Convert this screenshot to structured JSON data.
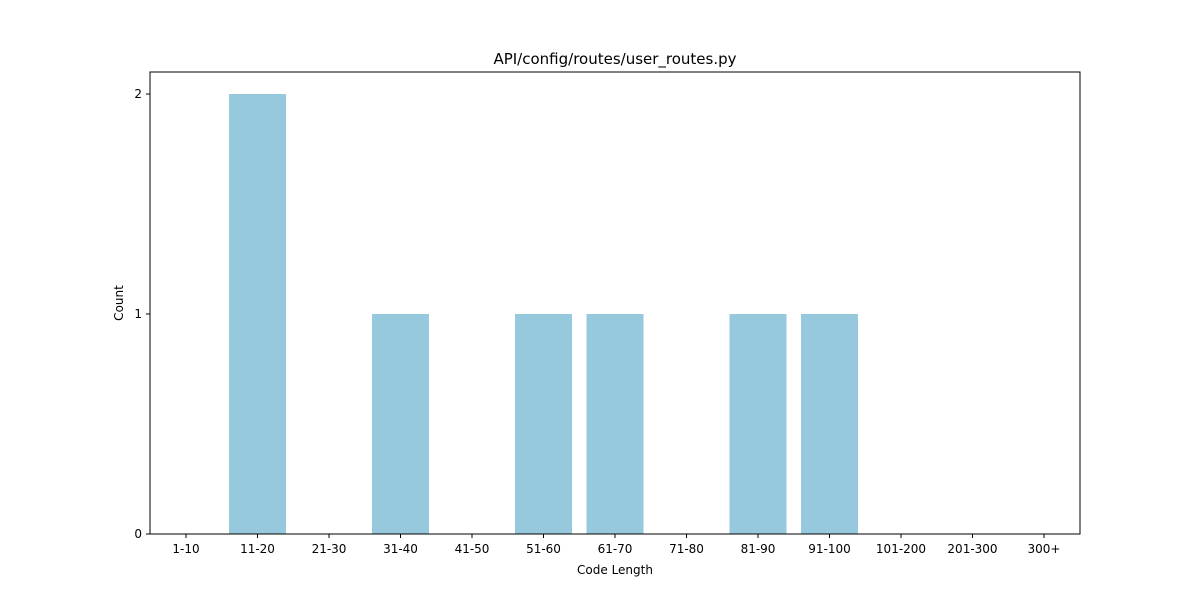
{
  "chart_data": {
    "type": "bar",
    "title": "API/config/routes/user_routes.py",
    "xlabel": "Code Length",
    "ylabel": "Count",
    "categories": [
      "1-10",
      "11-20",
      "21-30",
      "31-40",
      "41-50",
      "51-60",
      "61-70",
      "71-80",
      "81-90",
      "91-100",
      "101-200",
      "201-300",
      "300+"
    ],
    "values": [
      0,
      2,
      0,
      1,
      0,
      1,
      1,
      0,
      1,
      1,
      0,
      0,
      0
    ],
    "ylim": [
      0,
      2.1
    ],
    "yticks": [
      0,
      1,
      2
    ],
    "grid": false,
    "legend": "none",
    "bar_color": "#96c9dd"
  }
}
